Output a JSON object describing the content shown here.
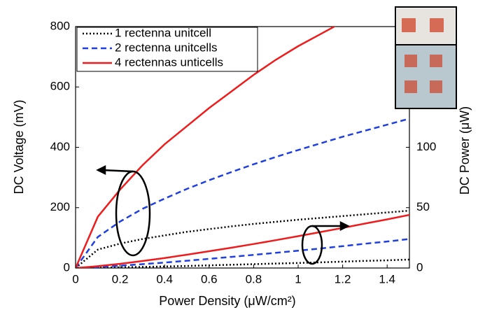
{
  "chart_data": {
    "type": "line",
    "xlabel": "Power Density (μW/cm²)",
    "ylabel": "DC Voltage (mV)",
    "y2label": "DC Power (μW)",
    "x": [
      0,
      0.1,
      0.2,
      0.3,
      0.4,
      0.5,
      0.6,
      0.7,
      0.8,
      0.9,
      1.0,
      1.1,
      1.2,
      1.3,
      1.4,
      1.5
    ],
    "xlim": [
      0,
      1.5
    ],
    "xticks": [
      0,
      0.2,
      0.4,
      0.6,
      0.8,
      1,
      1.2,
      1.4
    ],
    "ylim": [
      0,
      800
    ],
    "yticks": [
      0,
      200,
      400,
      600,
      800
    ],
    "y2lim": [
      0,
      200
    ],
    "y2ticks": [
      0,
      50,
      100
    ],
    "legend": "upper left",
    "series": [
      {
        "name": "1 rectenna unitcell",
        "color": "#000000",
        "dash": "dotted",
        "values": [
          0,
          61,
          81,
          96,
          108,
          120,
          129,
          138,
          146,
          153,
          160,
          166,
          172,
          178,
          184,
          190
        ]
      },
      {
        "name": "2 rectenna unitcells",
        "color": "#1f3fe0",
        "dash": "dashed",
        "values": [
          0,
          103,
          154,
          196,
          230,
          262,
          291,
          318,
          344,
          368,
          391,
          413,
          435,
          455,
          475,
          495
        ]
      },
      {
        "name": "4 rectennas unticells",
        "color": "#ee1c1c",
        "dash": "solid",
        "values": [
          0,
          170,
          260,
          340,
          410,
          470,
          530,
          585,
          640,
          690,
          735,
          775,
          815,
          null,
          null,
          null
        ]
      },
      {
        "axis": "y2",
        "color": "#000000",
        "dash": "dotted",
        "values": [
          0,
          0.2,
          0.6,
          0.9,
          1.3,
          1.7,
          2.2,
          2.7,
          3.2,
          3.7,
          4.2,
          4.7,
          5.3,
          5.9,
          6.4,
          7
        ]
      },
      {
        "axis": "y2",
        "color": "#1f3fe0",
        "dash": "dashed",
        "values": [
          0,
          0.8,
          1.9,
          3.2,
          4.5,
          6,
          7.6,
          9.2,
          10.9,
          12.6,
          14.4,
          16.2,
          18.1,
          20.1,
          22,
          24
        ]
      },
      {
        "axis": "y2",
        "color": "#ee1c1c",
        "dash": "solid",
        "values": [
          0,
          1.5,
          3.5,
          5.8,
          8.3,
          11,
          13.9,
          16.8,
          19.9,
          23.1,
          26.4,
          29.8,
          33.2,
          36.8,
          40.3,
          44
        ]
      }
    ]
  }
}
